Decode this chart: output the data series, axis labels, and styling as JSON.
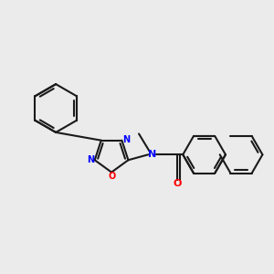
{
  "bg_color": "#ebebeb",
  "bond_color": "#1a1a1a",
  "N_color": "#0000ff",
  "O_color": "#ff0000",
  "lw": 1.5,
  "figsize": [
    3.0,
    3.0
  ],
  "dpi": 100,
  "xlim": [
    0.2,
    6.0
  ],
  "ylim": [
    2.5,
    7.5
  ]
}
